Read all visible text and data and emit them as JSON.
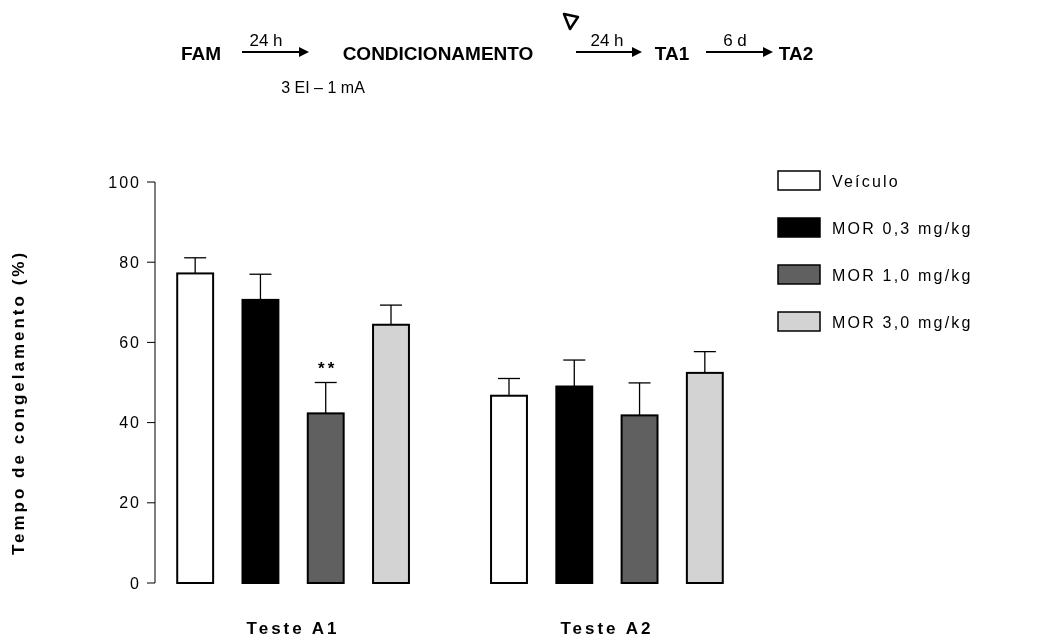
{
  "chart_data": {
    "type": "bar",
    "ylabel": "Tempo de congelamento (%)",
    "categories": [
      "Teste A1",
      "Teste A2"
    ],
    "series": [
      {
        "name": "Veículo",
        "color": "#ffffff",
        "values": [
          77.2,
          46.7
        ],
        "errors": [
          3.9,
          4.3
        ]
      },
      {
        "name": "MOR 0,3 mg/kg",
        "color": "#000000",
        "values": [
          70.6,
          49.0
        ],
        "errors": [
          6.4,
          6.6
        ]
      },
      {
        "name": "MOR 1,0 mg/kg",
        "color": "#606060",
        "values": [
          42.3,
          41.8
        ],
        "errors": [
          7.7,
          8.1
        ]
      },
      {
        "name": "MOR 3,0 mg/kg",
        "color": "#d3d3d3",
        "values": [
          64.4,
          52.4
        ],
        "errors": [
          4.9,
          5.3
        ]
      }
    ],
    "ylim": [
      0,
      100
    ],
    "yticks": [
      0,
      20,
      40,
      60,
      80,
      100
    ],
    "legend": "right",
    "annotations": [
      "FAM",
      "24 h",
      "CONDICIONAMENTO",
      "3 EI – 1 mA",
      "24 h",
      "TA1",
      "6 d",
      "TA2",
      "**"
    ]
  }
}
